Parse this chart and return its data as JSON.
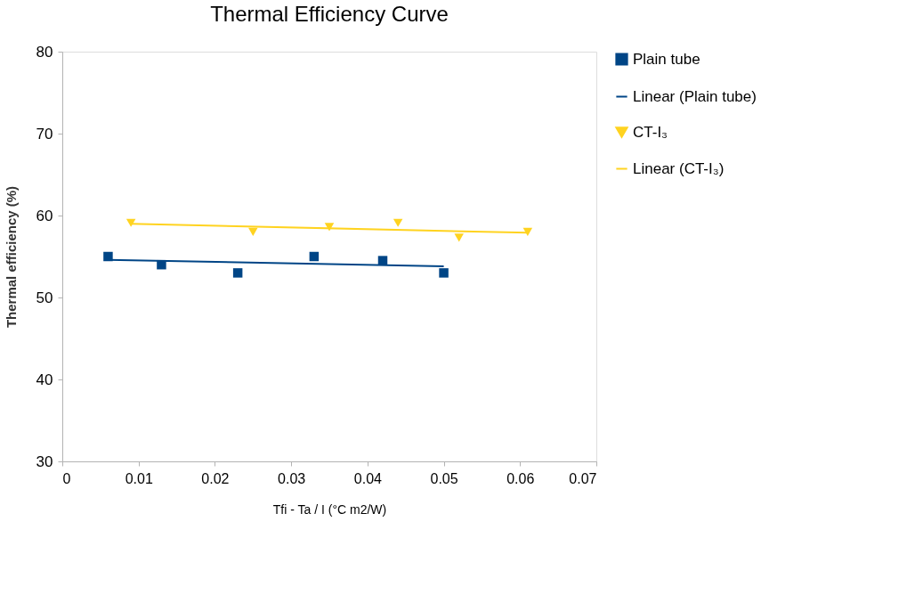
{
  "chart_data": {
    "type": "scatter",
    "title": "Thermal Efficiency Curve",
    "xlabel": "Tfi - Ta / I  (°C m2/W)",
    "ylabel": "Thermal efficiency (%)",
    "xlim": [
      0,
      0.07
    ],
    "xticks": [
      0,
      0.01,
      0.02,
      0.03,
      0.04,
      0.05,
      0.06,
      0.07
    ],
    "ylim": [
      30,
      80
    ],
    "yticks": [
      30,
      40,
      50,
      60,
      70,
      80
    ],
    "grid": false,
    "legend": "right",
    "series": [
      {
        "name": "Plain tube",
        "marker": "square",
        "color": "#004586",
        "x": [
          0.006,
          0.013,
          0.023,
          0.033,
          0.042,
          0.05
        ],
        "values": [
          55.0,
          54.0,
          53.0,
          55.0,
          54.5,
          53.0
        ]
      },
      {
        "name": "Linear (Plain tube)",
        "type": "line",
        "color": "#004586",
        "x": [
          0.006,
          0.05
        ],
        "values": [
          54.6,
          53.8
        ]
      },
      {
        "name": "CT-I₃",
        "marker": "triangle",
        "color": "#ffd320",
        "x": [
          0.009,
          0.025,
          0.035,
          0.044,
          0.052,
          0.061
        ],
        "values": [
          59.1,
          58.0,
          58.6,
          59.1,
          57.3,
          58.0
        ]
      },
      {
        "name": "Linear (CT-I₃)",
        "type": "line",
        "color": "#ffd320",
        "x": [
          0.009,
          0.061
        ],
        "values": [
          59.0,
          57.9
        ]
      }
    ]
  }
}
